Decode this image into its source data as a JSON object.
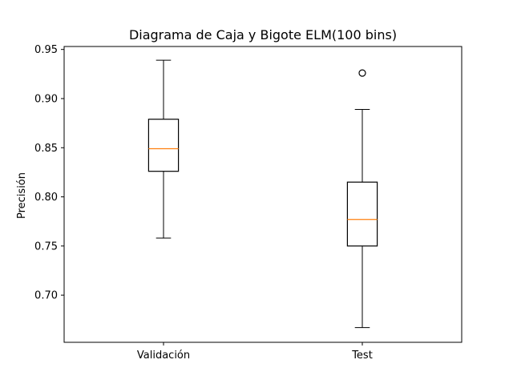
{
  "chart_data": {
    "type": "box",
    "title": "Diagrama de Caja y Bigote ELM(100 bins)",
    "xlabel": "",
    "ylabel": "Precisión",
    "ylim": [
      0.652,
      0.953
    ],
    "yticks": [
      0.7,
      0.75,
      0.8,
      0.85,
      0.9,
      0.95
    ],
    "ytick_labels": [
      "0.70",
      "0.75",
      "0.80",
      "0.85",
      "0.90",
      "0.95"
    ],
    "grid": false,
    "legend": "none",
    "categories": [
      "Validación",
      "Test"
    ],
    "boxes": [
      {
        "name": "Validación",
        "whisker_low": 0.758,
        "q1": 0.826,
        "median": 0.849,
        "q3": 0.879,
        "whisker_high": 0.939,
        "outliers": []
      },
      {
        "name": "Test",
        "whisker_low": 0.667,
        "q1": 0.75,
        "median": 0.777,
        "q3": 0.815,
        "whisker_high": 0.889,
        "outliers": [
          0.926
        ]
      }
    ],
    "colors": {
      "box": "#000000",
      "median": "#ff7f0e",
      "outlier": "#000000",
      "axes": "#000000"
    }
  }
}
